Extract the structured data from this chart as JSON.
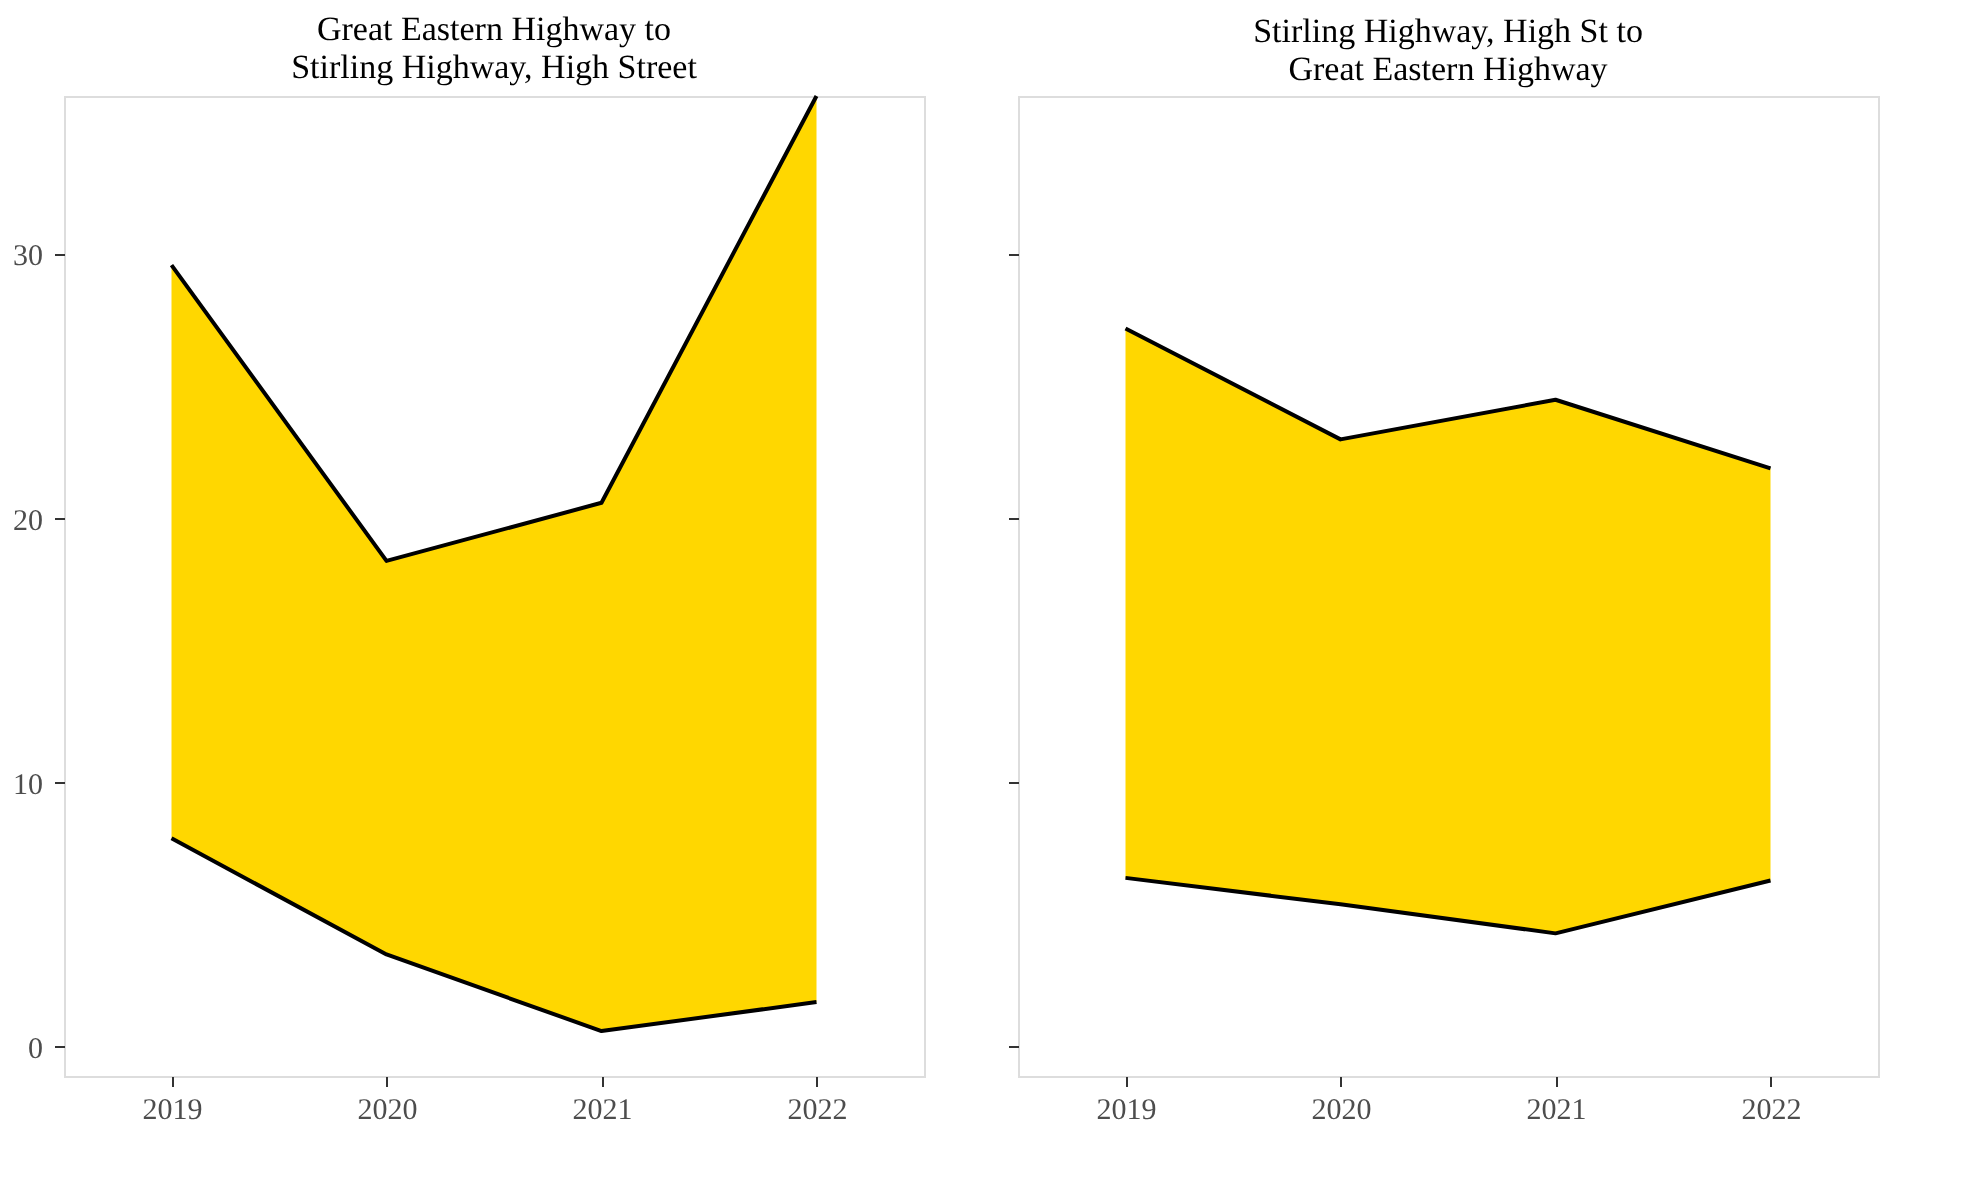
{
  "chart_data": [
    {
      "type": "area",
      "title": "Great Eastern Highway to\nStirling Highway, High Street",
      "categories": [
        "2019",
        "2020",
        "2021",
        "2022"
      ],
      "series": [
        {
          "color": "#ffd700",
          "values": [
            29.6,
            18.4,
            20.6,
            36.0
          ]
        },
        {
          "type": "line",
          "color": "#000000",
          "values": [
            7.9,
            3.5,
            0.6,
            1.7
          ]
        }
      ],
      "ylim": [
        -1.1,
        36
      ],
      "yticks": [
        0,
        10,
        20,
        30
      ],
      "grid": false
    },
    {
      "type": "area",
      "title": "Stirling Highway, High St to\nGreat Eastern Highway",
      "categories": [
        "2019",
        "2020",
        "2021",
        "2022"
      ],
      "series": [
        {
          "color": "#ffd700",
          "values": [
            27.2,
            23.0,
            24.5,
            21.9
          ]
        },
        {
          "type": "line",
          "color": "#000000",
          "values": [
            6.4,
            5.4,
            4.3,
            6.3
          ]
        }
      ],
      "ylim": [
        -1.1,
        36
      ],
      "yticks": [
        0,
        10,
        20,
        30
      ],
      "grid": false,
      "tick_labels": "x"
    }
  ]
}
